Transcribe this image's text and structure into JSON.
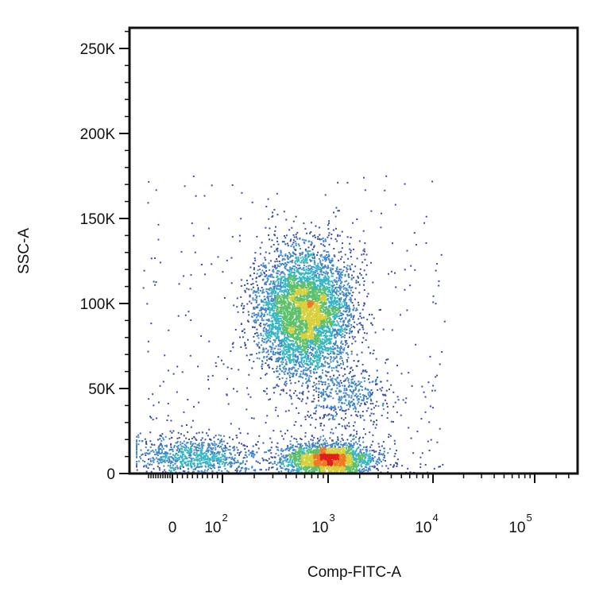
{
  "chart_data": {
    "type": "scatter",
    "style": "density-colored flow cytometry dot plot",
    "xlabel": "Comp-FITC-A",
    "ylabel": "SSC-A",
    "x_scale": "biexponential",
    "y_scale": "linear",
    "ylim": [
      0,
      262144
    ],
    "y_ticks": [
      {
        "value": 0,
        "label": "0"
      },
      {
        "value": 50000,
        "label": "50K"
      },
      {
        "value": 100000,
        "label": "100K"
      },
      {
        "value": 150000,
        "label": "150K"
      },
      {
        "value": 200000,
        "label": "200K"
      },
      {
        "value": 250000,
        "label": "250K"
      }
    ],
    "x_ticks": [
      {
        "value": 0,
        "base": "0",
        "exp": ""
      },
      {
        "value": 100,
        "base": "10",
        "exp": "2"
      },
      {
        "value": 1000,
        "base": "10",
        "exp": "3"
      },
      {
        "value": 10000,
        "base": "10",
        "exp": "4"
      },
      {
        "value": 100000,
        "base": "10",
        "exp": "5"
      }
    ],
    "density_colors": [
      "#3a4fa3",
      "#3f86c9",
      "#36b6c4",
      "#5cc06a",
      "#d8d03a",
      "#f07a24",
      "#e0201c"
    ],
    "populations": [
      {
        "x_center": 600,
        "y_center": 95000,
        "y_spread": 18000,
        "share": 0.55
      },
      {
        "x_center": 1000,
        "y_center": 8000,
        "y_spread": 5000,
        "share": 0.25
      },
      {
        "x_center": 50,
        "y_center": 10000,
        "y_spread": 6000,
        "share": 0.1
      },
      {
        "x_center": 1400,
        "y_center": 45000,
        "y_spread": 9000,
        "share": 0.05
      }
    ],
    "grid": false,
    "legend": "none"
  }
}
